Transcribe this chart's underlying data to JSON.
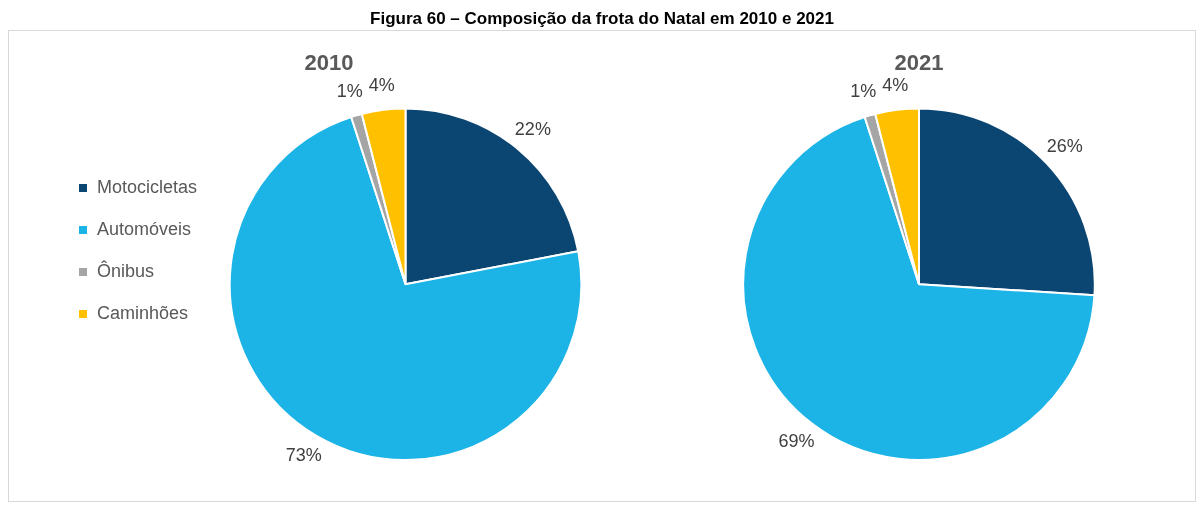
{
  "chart_data": [
    {
      "type": "pie",
      "title": "2010",
      "annotations": [
        "Figura 60 – Composição da frota do Natal em 2010 e 2021"
      ],
      "legend": "left",
      "categories": [
        "Motocicletas",
        "Automóveis",
        "Ônibus",
        "Caminhões"
      ],
      "values": [
        22,
        73,
        1,
        4
      ],
      "value_labels": [
        "22%",
        "73%",
        "1%",
        "4%"
      ],
      "colors": [
        "#0b4571",
        "#1cb3e6",
        "#a5a5a5",
        "#ffc000"
      ]
    },
    {
      "type": "pie",
      "title": "2021",
      "categories": [
        null,
        null,
        null,
        null
      ],
      "values": [
        26,
        69,
        1,
        4
      ],
      "value_labels": [
        "26%",
        "69%",
        "1%",
        "4%"
      ],
      "colors": [
        "#0b4571",
        "#1cb3e6",
        "#a5a5a5",
        "#ffc000"
      ]
    }
  ]
}
